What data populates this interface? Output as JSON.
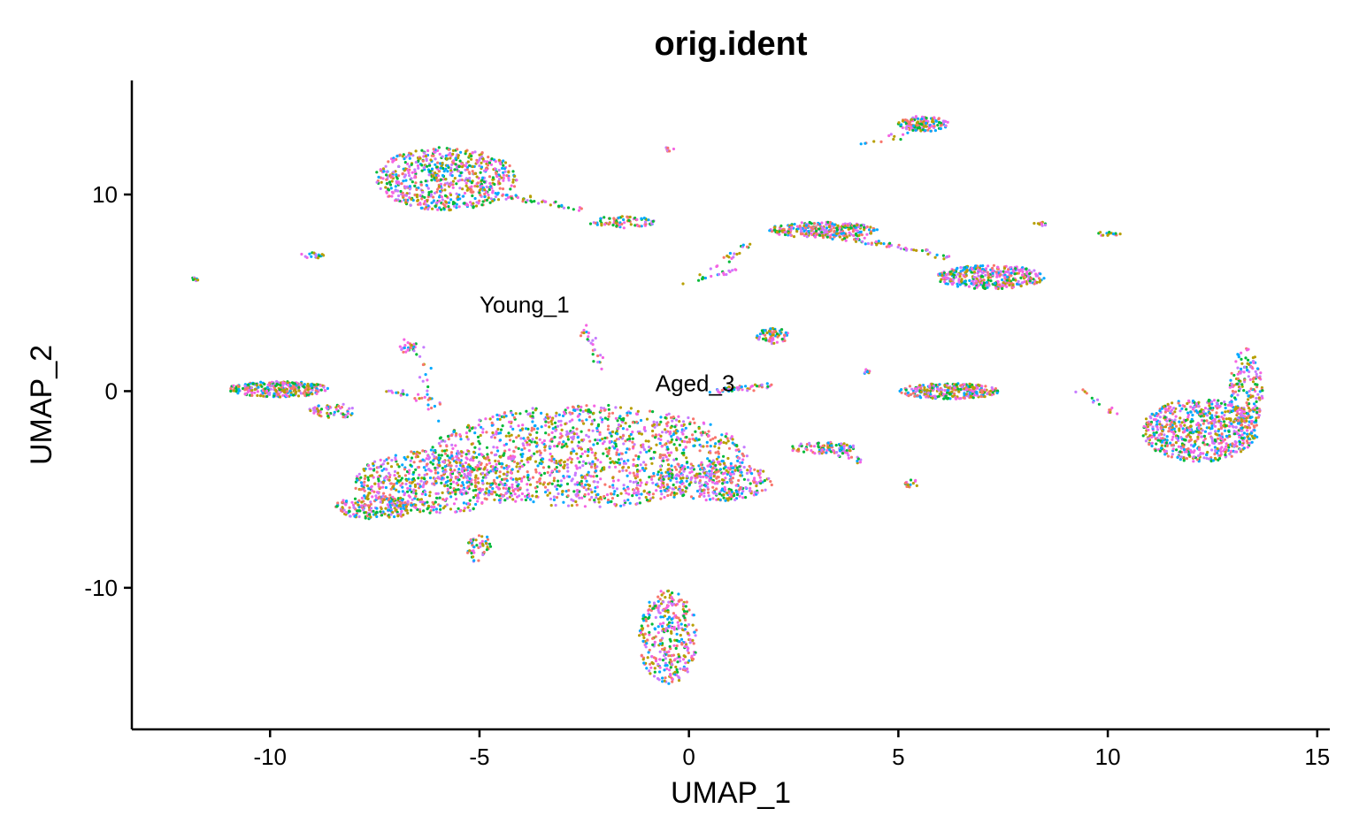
{
  "chart_data": {
    "type": "scatter",
    "title": "orig.ident",
    "xlabel": "UMAP_1",
    "ylabel": "UMAP_2",
    "xlim": [
      -13.3,
      15.3
    ],
    "ylim": [
      -17.2,
      15.8
    ],
    "xticks": [
      -10,
      -5,
      0,
      5,
      10,
      15
    ],
    "yticks": [
      -10,
      0,
      10
    ],
    "grid": false,
    "legend": "none",
    "point_colors": [
      "#F564E3",
      "#00A9FF",
      "#00BA38",
      "#B79F00",
      "#C77CFF",
      "#F8766D"
    ],
    "annotations": [
      {
        "text": "Young_1",
        "x": -5.0,
        "y": 4.4
      },
      {
        "text": "Aged_3",
        "x": -0.8,
        "y": 0.4
      }
    ],
    "clusters": [
      {
        "cx": -5.8,
        "cy": 10.8,
        "rx": 1.7,
        "ry": 1.6,
        "n": 700
      },
      {
        "cx": -2.4,
        "cy": -3.3,
        "rx": 3.8,
        "ry": 2.6,
        "n": 1400
      },
      {
        "cx": -6.0,
        "cy": -4.6,
        "rx": 2.0,
        "ry": 1.6,
        "n": 600
      },
      {
        "cx": -7.5,
        "cy": -5.9,
        "rx": 1.0,
        "ry": 0.6,
        "n": 200
      },
      {
        "cx": 0.6,
        "cy": -4.6,
        "rx": 1.4,
        "ry": 1.0,
        "n": 300
      },
      {
        "cx": -9.8,
        "cy": 0.1,
        "rx": 1.2,
        "ry": 0.4,
        "n": 300
      },
      {
        "cx": -0.5,
        "cy": -12.5,
        "rx": 0.7,
        "ry": 2.4,
        "n": 350
      },
      {
        "cx": 12.2,
        "cy": -2.0,
        "rx": 1.4,
        "ry": 1.6,
        "n": 700
      },
      {
        "cx": 13.3,
        "cy": 0.0,
        "rx": 0.4,
        "ry": 2.2,
        "n": 200
      },
      {
        "cx": 7.2,
        "cy": 5.8,
        "rx": 1.3,
        "ry": 0.6,
        "n": 400
      },
      {
        "cx": 3.2,
        "cy": 8.2,
        "rx": 1.3,
        "ry": 0.4,
        "n": 300
      },
      {
        "cx": 6.2,
        "cy": 0.0,
        "rx": 1.2,
        "ry": 0.4,
        "n": 300
      },
      {
        "cx": 5.6,
        "cy": 13.6,
        "rx": 0.6,
        "ry": 0.4,
        "n": 150
      },
      {
        "cx": 2.0,
        "cy": 2.8,
        "rx": 0.4,
        "ry": 0.4,
        "n": 70
      },
      {
        "cx": -1.6,
        "cy": 8.6,
        "rx": 0.8,
        "ry": 0.3,
        "n": 80
      },
      {
        "cx": 3.2,
        "cy": -2.9,
        "rx": 0.8,
        "ry": 0.3,
        "n": 100
      },
      {
        "cx": -8.5,
        "cy": -1.0,
        "rx": 0.6,
        "ry": 0.4,
        "n": 60
      },
      {
        "cx": -5.0,
        "cy": -8.0,
        "rx": 0.3,
        "ry": 0.8,
        "n": 50
      },
      {
        "cx": -6.7,
        "cy": 2.3,
        "rx": 0.2,
        "ry": 0.4,
        "n": 25
      },
      {
        "cx": 5.3,
        "cy": -4.7,
        "rx": 0.2,
        "ry": 0.2,
        "n": 15
      },
      {
        "cx": -11.8,
        "cy": 5.7,
        "rx": 0.1,
        "ry": 0.1,
        "n": 8
      },
      {
        "cx": -9.0,
        "cy": 6.9,
        "rx": 0.3,
        "ry": 0.15,
        "n": 20
      },
      {
        "cx": -0.5,
        "cy": 12.3,
        "rx": 0.15,
        "ry": 0.1,
        "n": 8
      },
      {
        "cx": 4.2,
        "cy": 1.0,
        "rx": 0.2,
        "ry": 0.1,
        "n": 10
      },
      {
        "cx": 10.0,
        "cy": 8.0,
        "rx": 0.3,
        "ry": 0.1,
        "n": 15
      },
      {
        "cx": 8.4,
        "cy": 8.5,
        "rx": 0.2,
        "ry": 0.1,
        "n": 10
      }
    ],
    "streaks": [
      {
        "from": [
          -4.5,
          10.0
        ],
        "to": [
          -2.5,
          9.2
        ],
        "n": 40
      },
      {
        "from": [
          0.5,
          0.0
        ],
        "to": [
          2.0,
          0.3
        ],
        "n": 50
      },
      {
        "from": [
          3.5,
          7.9
        ],
        "to": [
          6.2,
          6.8
        ],
        "n": 60
      },
      {
        "from": [
          1.5,
          7.6
        ],
        "to": [
          0.5,
          6.2
        ],
        "n": 20
      },
      {
        "from": [
          -0.4,
          5.4
        ],
        "to": [
          1.2,
          6.2
        ],
        "n": 20
      },
      {
        "from": [
          3.5,
          -3.0
        ],
        "to": [
          4.0,
          -3.6
        ],
        "n": 20
      },
      {
        "from": [
          9.4,
          0.0
        ],
        "to": [
          10.2,
          -1.1
        ],
        "n": 15
      },
      {
        "from": [
          -7.2,
          0.0
        ],
        "to": [
          -6.2,
          -0.4
        ],
        "n": 20
      },
      {
        "from": [
          -2.5,
          3.4
        ],
        "to": [
          -2.1,
          1.2
        ],
        "n": 25
      },
      {
        "from": [
          -6.5,
          2.5
        ],
        "to": [
          -6.0,
          -1.5
        ],
        "n": 25
      },
      {
        "from": [
          5.2,
          13.0
        ],
        "to": [
          4.2,
          12.6
        ],
        "n": 12
      }
    ]
  }
}
